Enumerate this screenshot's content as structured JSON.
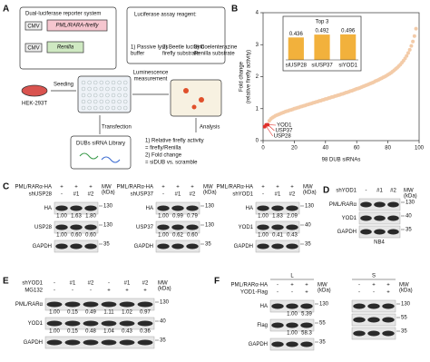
{
  "figure": {
    "a": {
      "label": "A",
      "reporter_title": "Dual-luciferase reporter system",
      "cmv_1": "CMV",
      "construct_1": "PML/RARA-firefly",
      "cmv_2": "CMV",
      "construct_2": "Renilla",
      "cell": "HEK-293T",
      "seeding": "Seeding",
      "reagent_title": "Luciferase assay reagent:",
      "reagent_items": [
        [
          "1) Passive lysis",
          "buffer"
        ],
        [
          "2) Beetle luciferin",
          "firefly substrate"
        ],
        [
          "3) Coelenterazine",
          "Renilla substrate"
        ]
      ],
      "measurement": [
        "Luminescence",
        "measurement"
      ],
      "transfection": "Transfection",
      "analysis": "Analysis",
      "library": "DUBs siRNA Library",
      "analysis_items": [
        "1) Relative firefly activity",
        "= firefly/Renilla",
        "2) Fold change",
        "= siDUB vs. scramble"
      ]
    },
    "b": {
      "label": "B"
    },
    "c": {
      "label": "C",
      "blots": [
        {
          "header_rows": [
            {
              "label": "PML/RARα-HA",
              "marks": [
                "+",
                "+",
                "+"
              ]
            },
            {
              "label": "shUSP28",
              "marks": [
                "-",
                "#1",
                "#2"
              ]
            }
          ],
          "mw_header": [
            "MW",
            "(kDa)"
          ],
          "bands": [
            {
              "label": "HA",
              "mw": "130",
              "quant": [
                "1.00",
                "1.63",
                "1.80"
              ]
            },
            {
              "label": "USP28",
              "mw": "130",
              "quant": [
                "1.00",
                "0.60",
                "0.60"
              ]
            },
            {
              "label": "GAPDH",
              "mw": "35"
            }
          ]
        },
        {
          "header_rows": [
            {
              "label": "PML/RARα-HA",
              "marks": [
                "+",
                "+",
                "+"
              ]
            },
            {
              "label": "shUSP37",
              "marks": [
                "-",
                "#1",
                "#2"
              ]
            }
          ],
          "mw_header": [
            "MW",
            "(kDa)"
          ],
          "bands": [
            {
              "label": "HA",
              "mw": "130",
              "quant": [
                "1.00",
                "0.99",
                "0.79"
              ]
            },
            {
              "label": "USP37",
              "mw": "130",
              "quant": [
                "1.00",
                "0.62",
                "0.60"
              ]
            },
            {
              "label": "GAPDH",
              "mw": "35"
            }
          ]
        },
        {
          "header_rows": [
            {
              "label": "PML/RARα-HA",
              "marks": [
                "+",
                "+",
                "+"
              ]
            },
            {
              "label": "shYOD1",
              "marks": [
                "-",
                "#1",
                "#2"
              ]
            }
          ],
          "mw_header": [
            "MW",
            "(kDa)"
          ],
          "bands": [
            {
              "label": "HA",
              "mw": "130",
              "quant": [
                "1.00",
                "1.83",
                "2.09"
              ]
            },
            {
              "label": "YOD1",
              "mw": "40",
              "quant": [
                "1.00",
                "0.41",
                "0.43"
              ]
            },
            {
              "label": "GAPDH",
              "mw": "35"
            }
          ]
        }
      ]
    },
    "d": {
      "label": "D",
      "caption": "NB4",
      "blot": {
        "header_rows": [
          {
            "label": "shYOD1",
            "marks": [
              "-",
              "#1",
              "#2"
            ]
          }
        ],
        "mw_header": [
          "MW",
          "(kDa)"
        ],
        "bands": [
          {
            "label": "PML/RARα",
            "mw": "130"
          },
          {
            "label": "YOD1",
            "mw": "40"
          },
          {
            "label": "GAPDH",
            "mw": "35"
          }
        ]
      }
    },
    "e": {
      "label": "E",
      "blot": {
        "header_rows": [
          {
            "label": "shYOD1",
            "marks": [
              "-",
              "#1",
              "#2",
              "-",
              "#1",
              "#2"
            ]
          },
          {
            "label": "MG132",
            "marks": [
              "-",
              "-",
              "-",
              "+",
              "+",
              "+"
            ]
          }
        ],
        "mw_header": [
          "MW",
          "(kDa)"
        ],
        "bands": [
          {
            "label": "PML/RARα",
            "mw": "130",
            "quant": [
              "1.00",
              "0.15",
              "0.49",
              "1.11",
              "1.02",
              "0.97"
            ]
          },
          {
            "label": "YOD1",
            "mw": "40",
            "quant": [
              "1.00",
              "0.15",
              "0.48",
              "1.04",
              "0.43",
              "0.36"
            ]
          },
          {
            "label": "GAPDH",
            "mw": "35"
          }
        ]
      }
    },
    "f": {
      "label": "F",
      "blots": [
        {
          "group": "L",
          "header_rows": [
            {
              "label": "PML/RARα-HA",
              "marks": [
                "-",
                "+",
                "+"
              ]
            },
            {
              "label": "YOD1-Flag",
              "marks": [
                "-",
                "-",
                "+"
              ]
            }
          ],
          "mw_header": [
            "MW",
            "(kDa)"
          ],
          "bands": [
            {
              "label": "HA",
              "mw": "130",
              "quant": [
                null,
                "1.00",
                "5.39"
              ]
            },
            {
              "label": "Flag",
              "mw": "55",
              "quant": [
                null,
                "1.00",
                "58.3"
              ]
            },
            {
              "label": "GAPDH",
              "mw": "35"
            }
          ]
        },
        {
          "group": "S",
          "header_rows": [
            {
              "marks": [
                "-",
                "+",
                "+"
              ]
            },
            {
              "marks": [
                "-",
                "-",
                "+"
              ]
            }
          ],
          "mw_header": [
            "MW",
            "(kDa)"
          ],
          "bands": [
            {
              "mw": "130"
            },
            {
              "mw": "55"
            },
            {
              "mw": "35"
            }
          ]
        }
      ]
    }
  },
  "chart_data": [
    {
      "type": "scatter",
      "ylabel": [
        "Fold change",
        "(relative firefly activity)"
      ],
      "xlabel": "98 DUB siRNAs",
      "color": "#f3cba8",
      "highlight_color": "#e0312b",
      "x": [
        1,
        2,
        3,
        4,
        5,
        6,
        7,
        8,
        9,
        10,
        11,
        12,
        13,
        14,
        15,
        16,
        17,
        18,
        19,
        20,
        21,
        22,
        23,
        24,
        25,
        26,
        27,
        28,
        29,
        30,
        31,
        32,
        33,
        34,
        35,
        36,
        37,
        38,
        39,
        40,
        41,
        42,
        43,
        44,
        45,
        46,
        47,
        48,
        49,
        50,
        51,
        52,
        53,
        54,
        55,
        56,
        57,
        58,
        59,
        60,
        61,
        62,
        63,
        64,
        65,
        66,
        67,
        68,
        69,
        70,
        71,
        72,
        73,
        74,
        75,
        76,
        77,
        78,
        79,
        80,
        81,
        82,
        83,
        84,
        85,
        86,
        87,
        88,
        89,
        90,
        91,
        92,
        93,
        94,
        95,
        96,
        97,
        98
      ],
      "values": [
        0.436,
        0.492,
        0.496,
        0.62,
        0.68,
        0.72,
        0.75,
        0.78,
        0.8,
        0.82,
        0.84,
        0.86,
        0.88,
        0.9,
        0.92,
        0.93,
        0.95,
        0.96,
        0.98,
        1.0,
        1.01,
        1.03,
        1.04,
        1.06,
        1.07,
        1.09,
        1.1,
        1.12,
        1.13,
        1.15,
        1.16,
        1.18,
        1.19,
        1.21,
        1.22,
        1.24,
        1.25,
        1.27,
        1.28,
        1.3,
        1.31,
        1.33,
        1.34,
        1.36,
        1.37,
        1.39,
        1.4,
        1.42,
        1.43,
        1.45,
        1.46,
        1.48,
        1.5,
        1.51,
        1.53,
        1.55,
        1.56,
        1.58,
        1.6,
        1.62,
        1.63,
        1.65,
        1.67,
        1.69,
        1.71,
        1.73,
        1.75,
        1.77,
        1.79,
        1.81,
        1.83,
        1.86,
        1.88,
        1.9,
        1.93,
        1.95,
        1.98,
        2.0,
        2.03,
        2.06,
        2.09,
        2.12,
        2.16,
        2.2,
        2.24,
        2.28,
        2.33,
        2.38,
        2.44,
        2.5,
        2.57,
        2.65,
        2.74,
        2.84,
        2.96,
        3.1,
        3.27,
        3.5
      ],
      "xlim": [
        0,
        100
      ],
      "xticks": [
        0,
        20,
        40,
        60,
        80,
        100
      ],
      "ylim": [
        0,
        4
      ],
      "yticks": [
        0,
        1,
        2,
        3,
        4
      ],
      "annotations": [
        {
          "text": "YOD1",
          "point": 2
        },
        {
          "text": "USP37",
          "point": 1
        },
        {
          "text": "USP28",
          "point": 0
        }
      ]
    },
    {
      "type": "bar",
      "title": "Top 3",
      "categories": [
        "siUSP28",
        "siUSP37",
        "siYOD1"
      ],
      "values": [
        0.436,
        0.492,
        0.496
      ],
      "color": "#f2b13c",
      "ylim": [
        0,
        0.6
      ]
    }
  ]
}
